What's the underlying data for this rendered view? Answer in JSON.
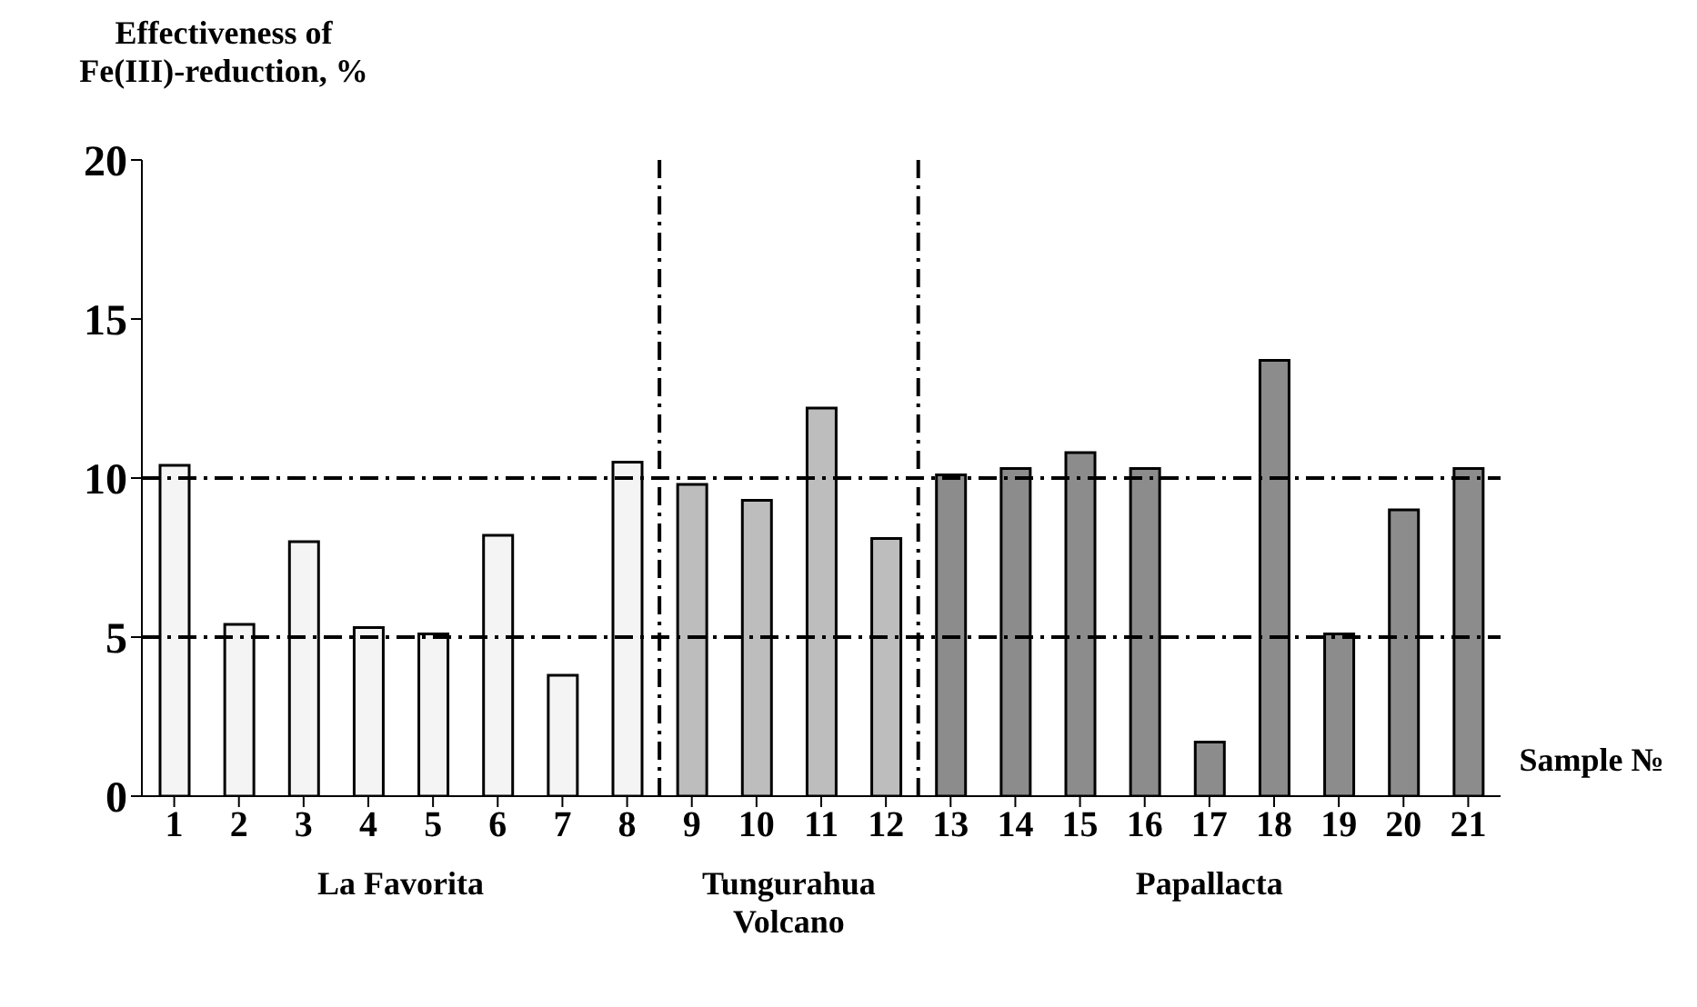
{
  "chart_data": {
    "type": "bar",
    "ylabel": "Effectiveness of Fe(III)-reduction, %",
    "xlabel": "Sample №",
    "x": [
      1,
      2,
      3,
      4,
      5,
      6,
      7,
      8,
      9,
      10,
      11,
      12,
      13,
      14,
      15,
      16,
      17,
      18,
      19,
      20,
      21
    ],
    "xlim": [
      0.5,
      21.5
    ],
    "xticks": [
      1,
      2,
      3,
      4,
      5,
      6,
      7,
      8,
      9,
      10,
      11,
      12,
      13,
      14,
      15,
      16,
      17,
      18,
      19,
      20,
      21
    ],
    "values": [
      10.4,
      5.4,
      8.0,
      5.3,
      5.1,
      8.2,
      3.8,
      10.5,
      9.8,
      9.3,
      12.2,
      8.1,
      10.1,
      10.3,
      10.8,
      10.3,
      1.7,
      13.7,
      5.1,
      9.0,
      10.3
    ],
    "colors": [
      "#f4f4f4",
      "#f4f4f4",
      "#f4f4f4",
      "#f4f4f4",
      "#f4f4f4",
      "#f4f4f4",
      "#f4f4f4",
      "#f4f4f4",
      "#bdbdbd",
      "#bdbdbd",
      "#bdbdbd",
      "#bdbdbd",
      "#8c8c8c",
      "#8c8c8c",
      "#8c8c8c",
      "#8c8c8c",
      "#8c8c8c",
      "#8c8c8c",
      "#8c8c8c",
      "#8c8c8c",
      "#8c8c8c"
    ],
    "ylim": [
      0,
      20
    ],
    "yticks": [
      0,
      5,
      10,
      15,
      20
    ],
    "grid": false,
    "legend": false,
    "ref_lines": [
      {
        "axis": "y",
        "value": 5,
        "line_style": "dashed",
        "color": "#000000"
      },
      {
        "axis": "y",
        "value": 10,
        "line_style": "dashed",
        "color": "#000000"
      },
      {
        "axis": "x",
        "value": 8.5,
        "line_style": "dashed",
        "color": "#000000"
      },
      {
        "axis": "x",
        "value": 12.5,
        "line_style": "dashed",
        "color": "#000000"
      }
    ],
    "annotations": [
      "La Favorita",
      "Tungurahua Volcano",
      "Papallacta"
    ]
  }
}
